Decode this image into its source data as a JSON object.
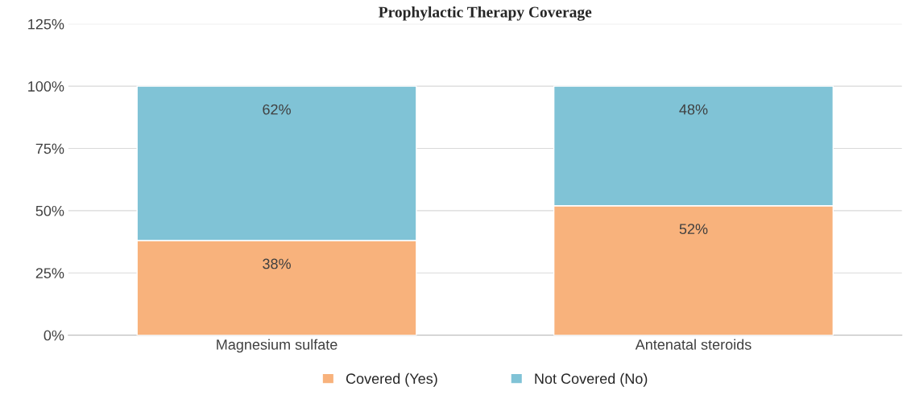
{
  "chart_data": {
    "type": "bar",
    "title": "Prophylactic Therapy Coverage",
    "categories": [
      "Magnesium sulfate",
      "Antenatal steroids"
    ],
    "stacked": true,
    "series": [
      {
        "name": "Covered (Yes)",
        "color": "#f8b27c",
        "values": [
          38,
          52
        ],
        "value_labels": [
          "38%",
          "52%"
        ]
      },
      {
        "name": "Not Covered (No)",
        "color": "#80c3d6",
        "values": [
          62,
          48
        ],
        "value_labels": [
          "62%",
          "48%"
        ]
      }
    ],
    "ylim": [
      0,
      125
    ],
    "yticks": [
      {
        "value": 0,
        "label": "0%"
      },
      {
        "value": 25,
        "label": "25%"
      },
      {
        "value": 50,
        "label": "50%"
      },
      {
        "value": 75,
        "label": "75%"
      },
      {
        "value": 100,
        "label": "100%"
      },
      {
        "value": 125,
        "label": "125%"
      }
    ],
    "grid": "y",
    "legend": "bottom"
  }
}
